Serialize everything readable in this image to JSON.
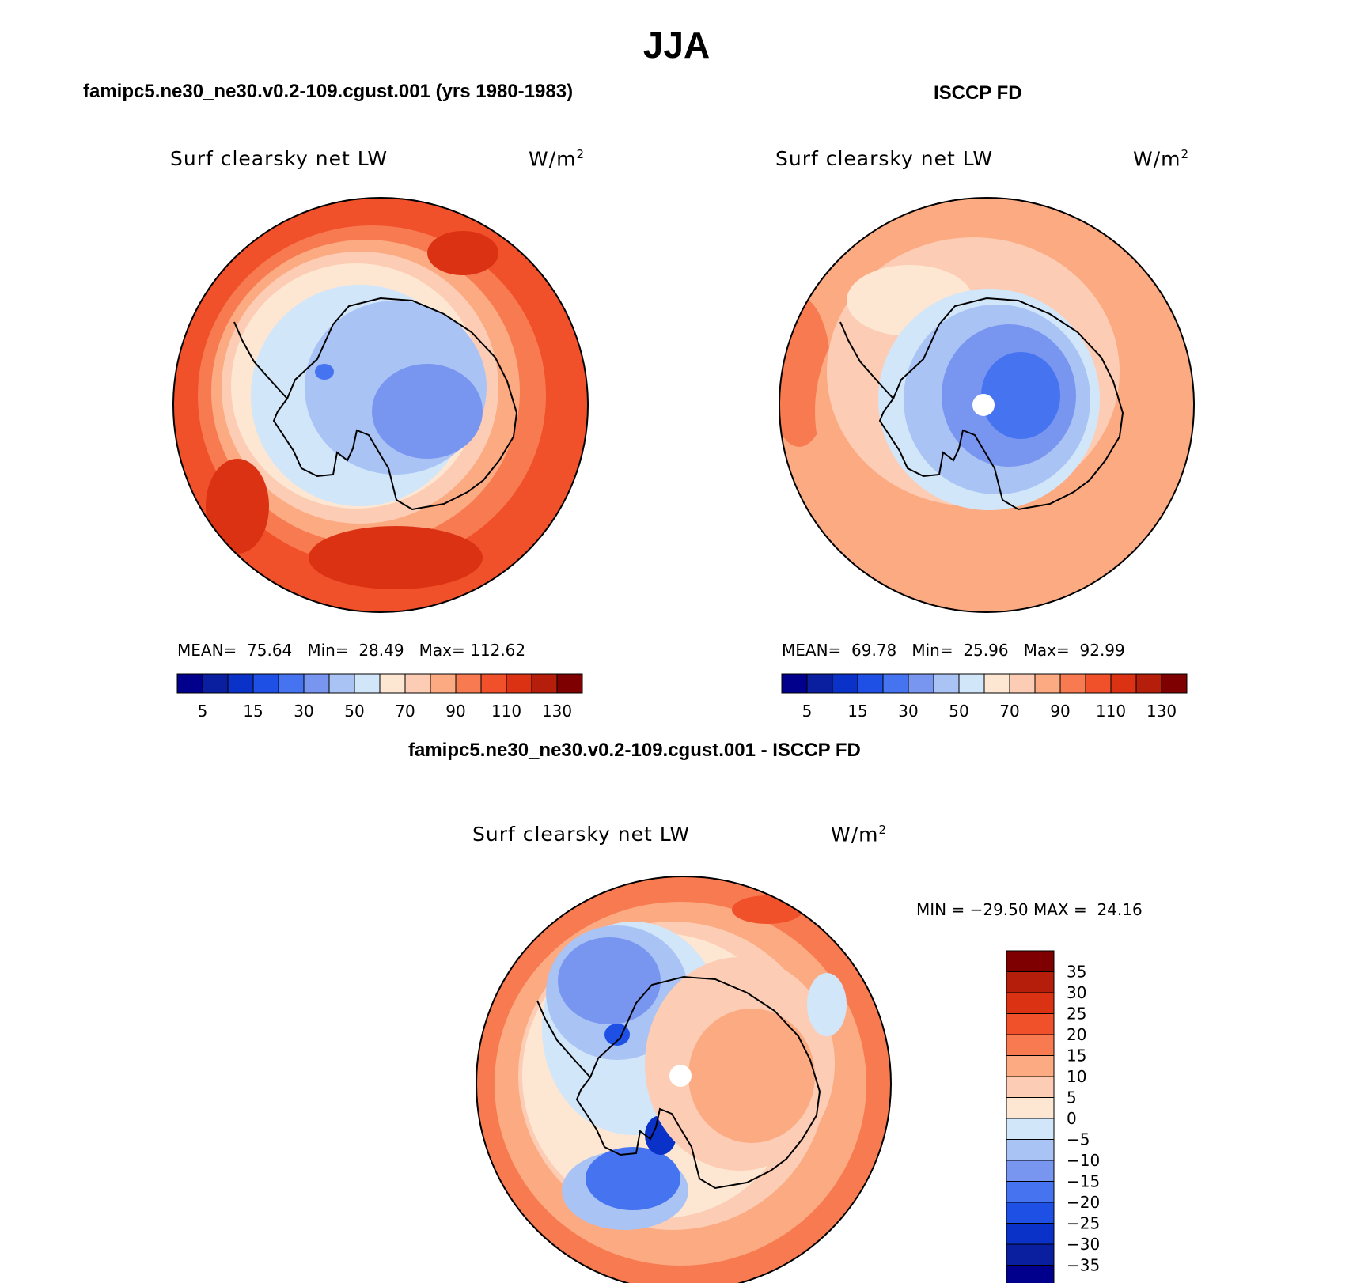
{
  "figure": {
    "title": "JJA",
    "colorbar_ticks": [
      "5",
      "15",
      "30",
      "50",
      "70",
      "90",
      "110",
      "130"
    ],
    "colorbar_colors": [
      "#00008c",
      "#0a1ea0",
      "#0a32c8",
      "#1e50e6",
      "#4673f0",
      "#7896f0",
      "#aac3f5",
      "#d2e6fa",
      "#fde6d2",
      "#fccdb4",
      "#fbaa82",
      "#f87a50",
      "#f0502a",
      "#dc3214",
      "#b41e0a",
      "#7f0000"
    ],
    "diff_colorbar_ticks": [
      "35",
      "30",
      "25",
      "20",
      "15",
      "10",
      "5",
      "0",
      "−5",
      "−10",
      "−15",
      "−20",
      "−25",
      "−30",
      "−35"
    ],
    "diff_colorbar_colors": [
      "#7f0000",
      "#b41e0a",
      "#dc3214",
      "#f0502a",
      "#f87a50",
      "#fbaa82",
      "#fccdb4",
      "#fde6d2",
      "#d2e6fa",
      "#aac3f5",
      "#7896f0",
      "#4673f0",
      "#1e50e6",
      "#0a32c8",
      "#0a1ea0",
      "#00008c"
    ]
  },
  "panels": {
    "model": {
      "title": "famipc5.ne30_ne30.v0.2-109.cgust.001 (yrs 1980-1983)",
      "variable": "Surf clearsky net LW",
      "units": "W/m",
      "units_sup": "2",
      "stats": {
        "mean_label": "MEAN=",
        "mean": "75.64",
        "min_label": "Min=",
        "min": "28.49",
        "max_label": "Max=",
        "max": "112.62"
      }
    },
    "obs": {
      "title": "ISCCP FD",
      "variable": "Surf clearsky net LW",
      "units": "W/m",
      "units_sup": "2",
      "stats": {
        "mean_label": "MEAN=",
        "mean": "69.78",
        "min_label": "Min=",
        "min": "25.96",
        "max_label": "Max=",
        "max": "92.99"
      }
    },
    "diff": {
      "title": "famipc5.ne30_ne30.v0.2-109.cgust.001 - ISCCP FD",
      "variable": "Surf clearsky net LW",
      "units": "W/m",
      "units_sup": "2",
      "stats": {
        "min_label": "MIN =",
        "min": "−29.50",
        "max_label": "MAX =",
        "max": "24.16"
      }
    }
  }
}
